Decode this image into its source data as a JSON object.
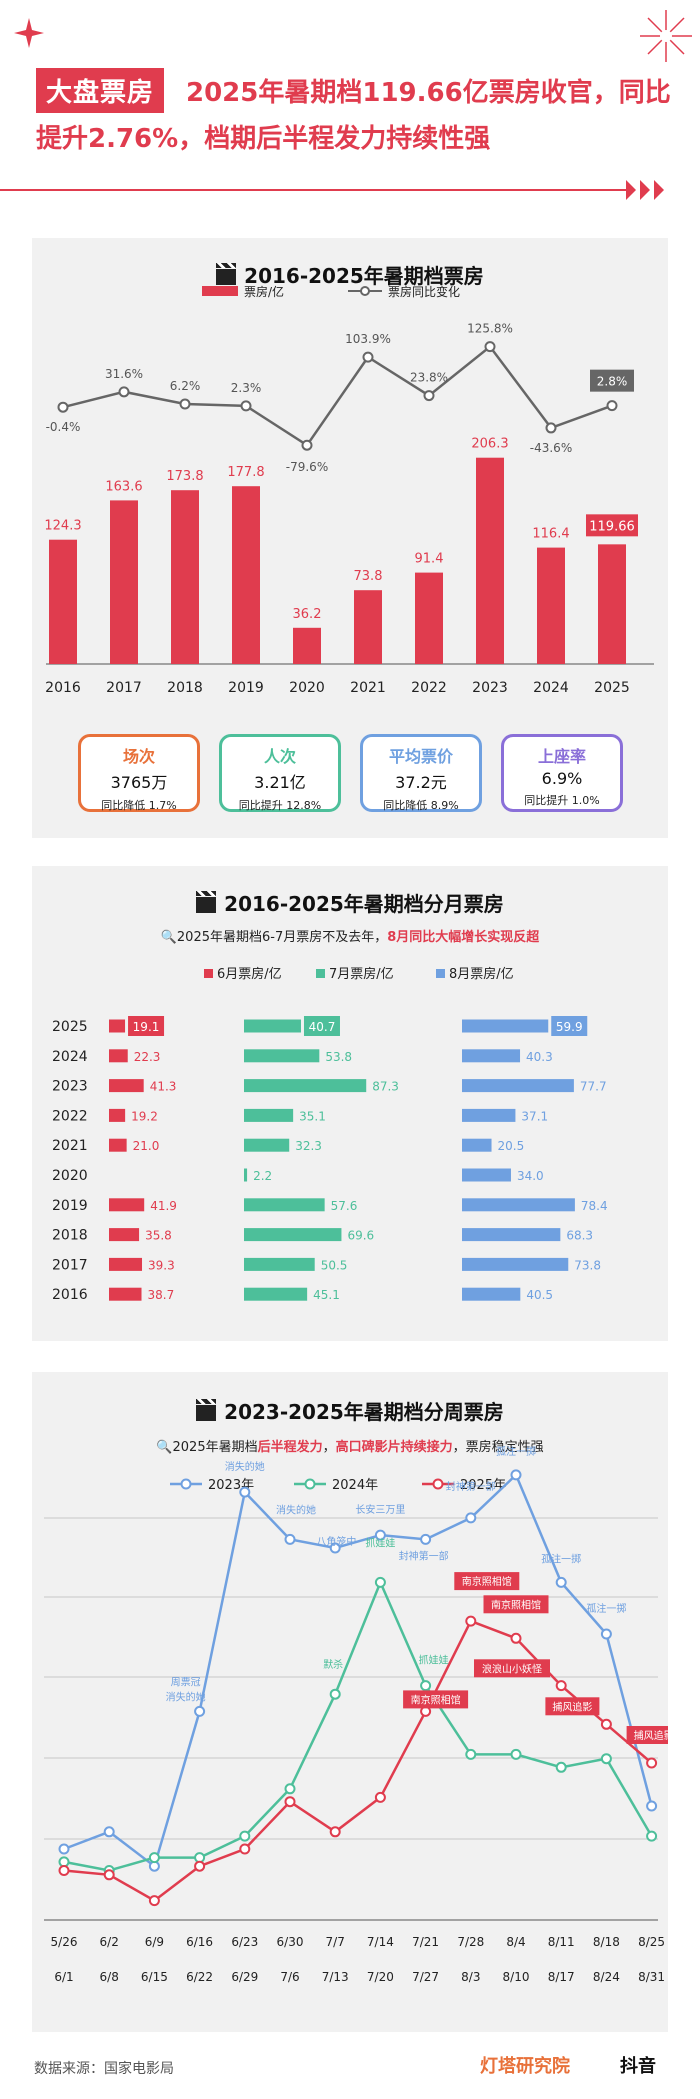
{
  "header": {
    "tag": "大盘票房",
    "headline": "2025年暑期档119.66亿票房收官，同比提升2.76%，档期后半程发力持续性强"
  },
  "colors": {
    "red": "#e03c4e",
    "green": "#4dbf9a",
    "blue": "#6fa0e0",
    "gray": "#666666",
    "orange": "#e8713a",
    "purple": "#8a6fd8"
  },
  "chart1": {
    "title": "2016-2025年暑期档票房",
    "legend_bar": "票房/亿",
    "legend_line": "票房同比变化"
  },
  "kpis": [
    {
      "name": "场次",
      "value": "3765万",
      "change": "同比降低 1.7%",
      "color": "#e8713a"
    },
    {
      "name": "人次",
      "value": "3.21亿",
      "change": "同比提升 12.8%",
      "color": "#4dbf9a"
    },
    {
      "name": "平均票价",
      "value": "37.2元",
      "change": "同比降低 8.9%",
      "color": "#6fa0e0"
    },
    {
      "name": "上座率",
      "value": "6.9%",
      "change": "同比提升 1.0%",
      "color": "#8a6fd8"
    }
  ],
  "chart2": {
    "title": "2016-2025年暑期档分月票房",
    "subtitle_a": "2025年暑期档6-7月票房不及去年，",
    "subtitle_b": "8月同比大幅增长实现反超"
  },
  "chart3": {
    "title": "2023-2025年暑期档分周票房",
    "subtitle_a": "2025年暑期档",
    "subtitle_b": "后半程发力",
    "subtitle_c": "，",
    "subtitle_d": "高口碑影片持续接力",
    "subtitle_e": "，票房稳定性强"
  },
  "footer": {
    "source": "数据来源：国家电影局",
    "brand": "灯塔研究院",
    "platform": "抖音"
  },
  "chart_data": [
    {
      "type": "bar",
      "title": "2016-2025年暑期档票房",
      "categories": [
        "2016",
        "2017",
        "2018",
        "2019",
        "2020",
        "2021",
        "2022",
        "2023",
        "2024",
        "2025"
      ],
      "series": [
        {
          "name": "票房/亿",
          "values": [
            124.3,
            163.6,
            173.8,
            177.8,
            36.2,
            73.8,
            91.4,
            206.3,
            116.4,
            119.66
          ],
          "labels": [
            "124.3",
            "163.6",
            "173.8",
            "177.8",
            "36.2",
            "73.8",
            "91.4",
            "206.3",
            "116.4",
            "119.66"
          ]
        },
        {
          "name": "票房同比变化",
          "type": "line",
          "values": [
            -0.4,
            31.6,
            6.2,
            2.3,
            -79.6,
            103.9,
            23.8,
            125.8,
            -43.6,
            2.8
          ],
          "labels": [
            "-0.4%",
            "31.6%",
            "6.2%",
            "2.3%",
            "-79.6%",
            "103.9%",
            "23.8%",
            "125.8%",
            "-43.6%",
            "2.8%"
          ]
        }
      ]
    },
    {
      "type": "bar",
      "title": "2016-2025年暑期档分月票房",
      "orientation": "horizontal",
      "categories": [
        "2025",
        "2024",
        "2023",
        "2022",
        "2021",
        "2020",
        "2019",
        "2018",
        "2017",
        "2016"
      ],
      "series": [
        {
          "name": "6月票房/亿",
          "values": [
            19.1,
            22.3,
            41.3,
            19.2,
            21.0,
            null,
            41.9,
            35.8,
            39.3,
            38.7
          ],
          "labels": [
            "19.1",
            "22.3",
            "41.3",
            "19.2",
            "21.0",
            "",
            "41.9",
            "35.8",
            "39.3",
            "38.7"
          ]
        },
        {
          "name": "7月票房/亿",
          "values": [
            40.7,
            53.8,
            87.3,
            35.1,
            32.3,
            2.2,
            57.6,
            69.6,
            50.5,
            45.1
          ],
          "labels": [
            "40.7",
            "53.8",
            "87.3",
            "35.1",
            "32.3",
            "2.2",
            "57.6",
            "69.6",
            "50.5",
            "45.1"
          ]
        },
        {
          "name": "8月票房/亿",
          "values": [
            59.9,
            40.3,
            77.7,
            37.1,
            20.5,
            34.0,
            78.4,
            68.3,
            73.8,
            40.5
          ],
          "labels": [
            "59.9",
            "40.3",
            "77.7",
            "37.1",
            "20.5",
            "34.0",
            "78.4",
            "68.3",
            "73.8",
            "40.5"
          ]
        }
      ]
    },
    {
      "type": "line",
      "title": "2023-2025年暑期档分周票房",
      "x_top": [
        "5/26",
        "6/2",
        "6/9",
        "6/16",
        "6/23",
        "6/30",
        "7/7",
        "7/14",
        "7/21",
        "7/28",
        "8/4",
        "8/11",
        "8/18",
        "8/25"
      ],
      "x_bottom": [
        "6/1",
        "6/8",
        "6/15",
        "6/22",
        "6/29",
        "7/6",
        "7/13",
        "7/20",
        "7/27",
        "8/3",
        "8/10",
        "8/17",
        "8/24",
        "8/31"
      ],
      "series": [
        {
          "name": "2023年",
          "values": [
            0.1,
            0.14,
            0.06,
            0.42,
            0.93,
            0.82,
            0.8,
            0.83,
            0.82,
            0.87,
            0.97,
            0.72,
            0.6,
            0.2
          ]
        },
        {
          "name": "2024年",
          "values": [
            0.07,
            0.05,
            0.08,
            0.08,
            0.13,
            0.24,
            0.46,
            0.72,
            0.48,
            0.32,
            0.32,
            0.29,
            0.31,
            0.13
          ]
        },
        {
          "name": "2025年",
          "values": [
            0.05,
            0.04,
            -0.02,
            0.06,
            0.1,
            0.21,
            0.14,
            0.22,
            0.42,
            0.63,
            0.59,
            0.48,
            0.39,
            0.3
          ]
        }
      ],
      "annotations_2023": [
        {
          "index": 3,
          "lines": [
            "周票冠",
            "消失的她"
          ]
        },
        {
          "index": 4,
          "lines": [
            "消失的她"
          ]
        },
        {
          "index": 5,
          "lines": [
            "消失的她"
          ]
        },
        {
          "index": 7,
          "lines": [
            "长安三万里"
          ]
        },
        {
          "index": 9,
          "lines": [
            "封神第一部"
          ]
        },
        {
          "index": 10,
          "lines": [
            "孤注一掷"
          ]
        },
        {
          "index": 11,
          "lines": [
            "孤注一掷"
          ]
        },
        {
          "index": 12,
          "lines": [
            "孤注一掷"
          ]
        }
      ],
      "annotations_2024": [
        {
          "index": 6,
          "lines": [
            "默杀"
          ]
        },
        {
          "index": 7,
          "lines": [
            "抓娃娃"
          ]
        },
        {
          "index": 8,
          "lines": [
            "抓娃娃"
          ]
        }
      ],
      "annotations_2025": [
        {
          "index": 7,
          "lines": [
            "八角笼中"
          ]
        },
        {
          "index": 8,
          "lines": [
            "封神第一部"
          ]
        },
        {
          "index": 8,
          "lines": [
            "南京照相馆"
          ]
        },
        {
          "index": 9,
          "lines": [
            "南京照相馆"
          ]
        },
        {
          "index": 10,
          "lines": [
            "南京照相馆"
          ]
        },
        {
          "index": 10,
          "lines": [
            "浪浪山小妖怪"
          ]
        },
        {
          "index": 12,
          "lines": [
            "捕风追影"
          ]
        },
        {
          "index": 13,
          "lines": [
            "捕风追影"
          ]
        }
      ]
    }
  ]
}
